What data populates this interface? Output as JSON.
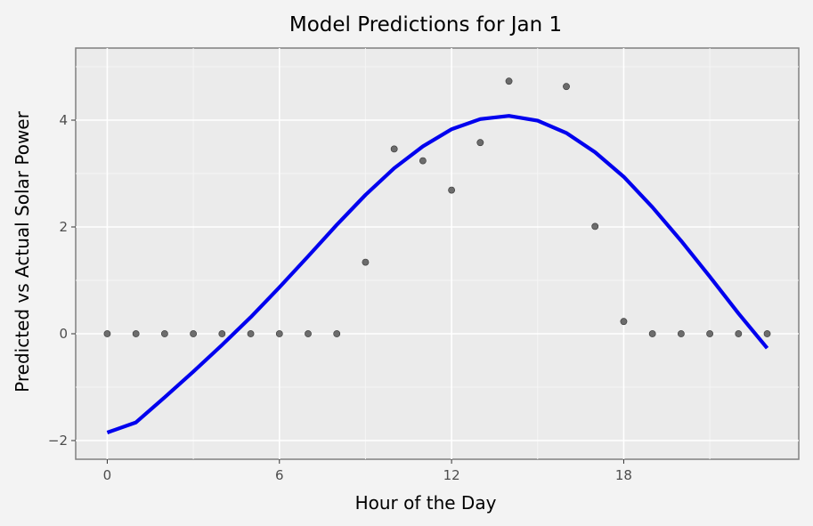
{
  "chart_data": {
    "type": "line",
    "title": "Model Predictions for Jan 1",
    "xlabel": "Hour of the Day",
    "ylabel": "Predicted vs Actual Solar Power",
    "xlim": [
      -1.1,
      24.1
    ],
    "ylim": [
      -2.35,
      5.35
    ],
    "x_ticks": [
      0,
      6,
      12,
      18
    ],
    "x_tick_labels": [
      "0",
      "6",
      "12",
      "18"
    ],
    "y_ticks": [
      -2,
      0,
      2,
      4
    ],
    "y_tick_labels": [
      "−2",
      "0",
      "2",
      "4"
    ],
    "grid": true,
    "legend": "none",
    "series": [
      {
        "kind": "scatter",
        "color": "#555555",
        "x": [
          0,
          1,
          2,
          3,
          4,
          5,
          6,
          7,
          8,
          9,
          10,
          11,
          12,
          13,
          14,
          15,
          16,
          17,
          18,
          19,
          20,
          21,
          22,
          23
        ],
        "y": [
          0,
          0,
          0,
          0,
          0,
          0,
          0,
          0,
          0,
          1.34,
          3.46,
          3.24,
          2.69,
          3.58,
          4.73,
          null,
          4.63,
          2.01,
          0.23,
          0,
          0,
          0,
          0,
          0
        ]
      },
      {
        "kind": "line",
        "color": "#0000ee",
        "x": [
          0,
          1,
          2,
          3,
          4,
          5,
          6,
          7,
          8,
          9,
          10,
          11,
          12,
          13,
          14,
          15,
          16,
          17,
          18,
          19,
          20,
          21,
          22,
          23
        ],
        "y": [
          -1.85,
          -1.66,
          -1.19,
          -0.71,
          -0.21,
          0.31,
          0.87,
          1.45,
          2.04,
          2.6,
          3.1,
          3.51,
          3.83,
          4.02,
          4.08,
          3.99,
          3.76,
          3.4,
          2.94,
          2.37,
          1.74,
          1.07,
          0.38,
          -0.27
        ]
      }
    ]
  }
}
